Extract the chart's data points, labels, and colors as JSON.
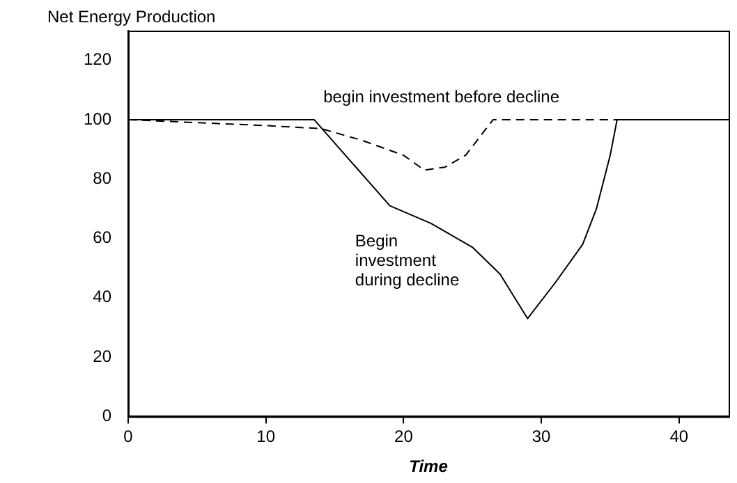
{
  "chart_data": {
    "type": "line",
    "ylabel": "Net Energy Production",
    "xlabel": "Time",
    "xlim": [
      0,
      43.6
    ],
    "ylim": [
      0,
      130
    ],
    "xticks": [
      0,
      10,
      20,
      30,
      40
    ],
    "yticks": [
      0,
      20,
      40,
      60,
      80,
      100,
      120
    ],
    "grid": false,
    "legend": false,
    "marker": "none",
    "series": [
      {
        "color": "#000000",
        "line_style": "solid",
        "x": [
          0,
          13.5,
          19,
          22,
          25,
          27,
          29,
          31,
          33,
          34,
          35,
          35.5,
          43.6
        ],
        "values": [
          100,
          100,
          71,
          65,
          57,
          48,
          33,
          45,
          58,
          70,
          88,
          100,
          100
        ]
      },
      {
        "color": "#000000",
        "line_style": "dashed",
        "x": [
          0,
          10,
          14,
          17,
          20,
          21.5,
          23,
          24.5,
          25.5,
          26.5,
          43.6
        ],
        "values": [
          100,
          98,
          97,
          93,
          88,
          83,
          84,
          88,
          94,
          100,
          100
        ]
      }
    ],
    "annotations": [
      "begin investment before decline",
      "Begin investment during decline"
    ]
  }
}
